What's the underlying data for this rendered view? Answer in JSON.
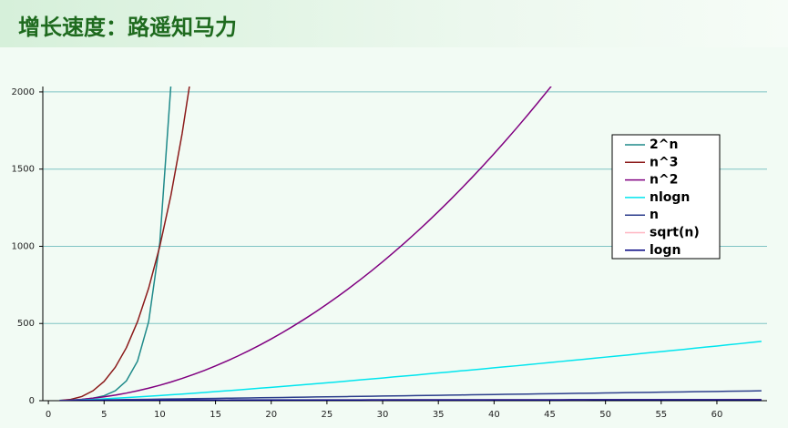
{
  "chart_data": {
    "type": "line",
    "title": "增长速度：路遥知马力",
    "x": [
      1,
      2,
      3,
      4,
      5,
      6,
      7,
      8,
      9,
      10,
      11,
      12,
      13,
      14,
      15,
      16,
      17,
      18,
      19,
      20,
      21,
      22,
      23,
      24,
      25,
      26,
      27,
      28,
      29,
      30,
      31,
      32,
      33,
      34,
      35,
      36,
      37,
      38,
      39,
      40,
      41,
      42,
      43,
      44,
      45,
      46,
      47,
      48,
      49,
      50,
      51,
      52,
      53,
      54,
      55,
      56,
      57,
      58,
      59,
      60,
      61,
      62,
      63,
      64
    ],
    "series": [
      {
        "name": "2^n",
        "color": "#1f8a8a",
        "values": [
          2,
          4,
          8,
          16,
          32,
          64,
          128,
          256,
          512,
          1024,
          2048,
          null,
          null,
          null,
          null,
          null,
          null,
          null,
          null,
          null,
          null,
          null,
          null,
          null,
          null,
          null,
          null,
          null,
          null,
          null,
          null,
          null,
          null,
          null,
          null,
          null,
          null,
          null,
          null,
          null,
          null,
          null,
          null,
          null,
          null,
          null,
          null,
          null,
          null,
          null,
          null,
          null,
          null,
          null,
          null,
          null,
          null,
          null,
          null,
          null,
          null,
          null,
          null,
          null
        ]
      },
      {
        "name": "n^3",
        "color": "#8b1a1a",
        "values": [
          1,
          8,
          27,
          64,
          125,
          216,
          343,
          512,
          729,
          1000,
          1331,
          1728,
          2197,
          null,
          null,
          null,
          null,
          null,
          null,
          null,
          null,
          null,
          null,
          null,
          null,
          null,
          null,
          null,
          null,
          null,
          null,
          null,
          null,
          null,
          null,
          null,
          null,
          null,
          null,
          null,
          null,
          null,
          null,
          null,
          null,
          null,
          null,
          null,
          null,
          null,
          null,
          null,
          null,
          null,
          null,
          null,
          null,
          null,
          null,
          null,
          null,
          null,
          null,
          null
        ]
      },
      {
        "name": "n^2",
        "color": "#800080",
        "values": [
          1,
          4,
          9,
          16,
          25,
          36,
          49,
          64,
          81,
          100,
          121,
          144,
          169,
          196,
          225,
          256,
          289,
          324,
          361,
          400,
          441,
          484,
          529,
          576,
          625,
          676,
          729,
          784,
          841,
          900,
          961,
          1024,
          1089,
          1156,
          1225,
          1296,
          1369,
          1444,
          1521,
          1600,
          1681,
          1764,
          1849,
          1936,
          2025,
          2116,
          null,
          null,
          null,
          null,
          null,
          null,
          null,
          null,
          null,
          null,
          null,
          null,
          null,
          null,
          null,
          null,
          null,
          null
        ]
      },
      {
        "name": "nlogn",
        "color": "#00e5ee",
        "values": [
          0,
          2,
          5,
          8,
          12,
          16,
          20,
          24,
          29,
          33,
          38,
          43,
          48,
          53,
          59,
          64,
          69,
          75,
          81,
          86,
          92,
          98,
          104,
          110,
          116,
          122,
          128,
          135,
          141,
          147,
          154,
          160,
          166,
          173,
          180,
          186,
          193,
          199,
          206,
          213,
          220,
          226,
          233,
          240,
          247,
          254,
          261,
          268,
          275,
          282,
          289,
          296,
          304,
          311,
          318,
          325,
          332,
          340,
          347,
          354,
          362,
          369,
          377,
          384
        ]
      },
      {
        "name": "n",
        "color": "#2c3e8c",
        "values": [
          1,
          2,
          3,
          4,
          5,
          6,
          7,
          8,
          9,
          10,
          11,
          12,
          13,
          14,
          15,
          16,
          17,
          18,
          19,
          20,
          21,
          22,
          23,
          24,
          25,
          26,
          27,
          28,
          29,
          30,
          31,
          32,
          33,
          34,
          35,
          36,
          37,
          38,
          39,
          40,
          41,
          42,
          43,
          44,
          45,
          46,
          47,
          48,
          49,
          50,
          51,
          52,
          53,
          54,
          55,
          56,
          57,
          58,
          59,
          60,
          61,
          62,
          63,
          64
        ]
      },
      {
        "name": "sqrt(n)",
        "color": "#ffb6c1",
        "values": [
          1,
          1.4,
          1.7,
          2,
          2.2,
          2.4,
          2.6,
          2.8,
          3,
          3.2,
          3.3,
          3.5,
          3.6,
          3.7,
          3.9,
          4,
          4.1,
          4.2,
          4.4,
          4.5,
          4.6,
          4.7,
          4.8,
          4.9,
          5,
          5.1,
          5.2,
          5.3,
          5.4,
          5.5,
          5.6,
          5.7,
          5.7,
          5.8,
          5.9,
          6,
          6.1,
          6.2,
          6.2,
          6.3,
          6.4,
          6.5,
          6.6,
          6.6,
          6.7,
          6.8,
          6.9,
          6.9,
          7,
          7.1,
          7.1,
          7.2,
          7.3,
          7.3,
          7.4,
          7.5,
          7.5,
          7.6,
          7.7,
          7.7,
          7.8,
          7.9,
          7.9,
          8
        ]
      },
      {
        "name": "logn",
        "color": "#000080",
        "values": [
          0,
          1,
          1.6,
          2,
          2.3,
          2.6,
          2.8,
          3,
          3.2,
          3.3,
          3.5,
          3.6,
          3.7,
          3.8,
          3.9,
          4,
          4.1,
          4.2,
          4.2,
          4.3,
          4.4,
          4.5,
          4.5,
          4.6,
          4.6,
          4.7,
          4.8,
          4.8,
          4.9,
          4.9,
          5,
          5,
          5,
          5.1,
          5.1,
          5.2,
          5.2,
          5.2,
          5.3,
          5.3,
          5.4,
          5.4,
          5.4,
          5.5,
          5.5,
          5.5,
          5.6,
          5.6,
          5.6,
          5.6,
          5.7,
          5.7,
          5.7,
          5.8,
          5.8,
          5.8,
          5.8,
          5.9,
          5.9,
          5.9,
          5.9,
          6,
          6,
          6
        ]
      }
    ],
    "xlim": [
      -0.5,
      64.5
    ],
    "xticks": [
      0,
      5,
      10,
      15,
      20,
      25,
      30,
      35,
      40,
      45,
      50,
      55,
      60
    ],
    "ylim": [
      0,
      2035
    ],
    "yticks": [
      0,
      500,
      1000,
      1500,
      2000
    ],
    "grid": true
  }
}
